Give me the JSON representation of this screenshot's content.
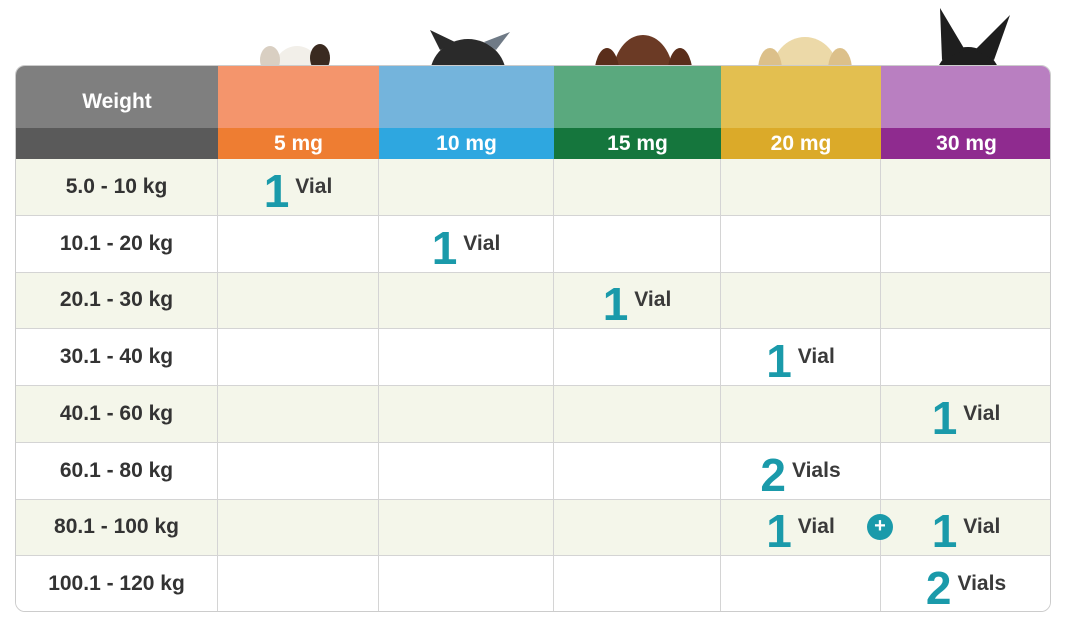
{
  "table": {
    "header": [
      "Weight",
      "5 mg",
      "10 mg",
      "15 mg",
      "20 mg",
      "30 mg"
    ],
    "rows": [
      [
        "5.0 - 10 kg",
        {
          "count": 1,
          "unit": "Vial"
        },
        null,
        null,
        null,
        null
      ],
      [
        "10.1 - 20 kg",
        null,
        {
          "count": 1,
          "unit": "Vial"
        },
        null,
        null,
        null
      ],
      [
        "20.1 - 30 kg",
        null,
        null,
        {
          "count": 1,
          "unit": "Vial"
        },
        null,
        null
      ],
      [
        "30.1 - 40 kg",
        null,
        null,
        null,
        {
          "count": 1,
          "unit": "Vial"
        },
        null
      ],
      [
        "40.1 - 60 kg",
        null,
        null,
        null,
        null,
        {
          "count": 1,
          "unit": "Vial"
        }
      ],
      [
        "60.1 - 80 kg",
        null,
        null,
        null,
        {
          "count": 2,
          "unit": "Vials"
        },
        null
      ],
      [
        "80.1 - 100 kg",
        null,
        null,
        null,
        {
          "count": 1,
          "unit": "Vial"
        },
        {
          "count": 1,
          "unit": "Vial"
        }
      ],
      [
        "100.1 - 120 kg",
        null,
        null,
        null,
        null,
        {
          "count": 2,
          "unit": "Vials"
        }
      ]
    ]
  }
}
